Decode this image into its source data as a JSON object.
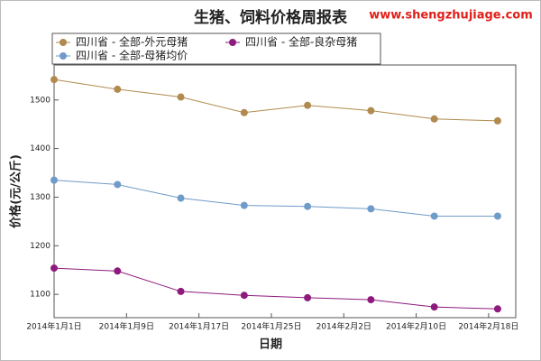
{
  "chart_data": {
    "type": "line",
    "title": "生猪、饲料价格周报表",
    "watermark": "www.shengzhujiage.com",
    "x_label": "日期",
    "y_label": "价格(元/公斤)",
    "x": [
      "2014-01-01",
      "2014-01-08",
      "2014-01-15",
      "2014-01-22",
      "2014-01-29",
      "2014-02-05",
      "2014-02-12",
      "2014-02-19"
    ],
    "series": [
      {
        "name": "四川省 - 全部-外元母猪",
        "color": "#b08a4e",
        "values": [
          1542,
          1522,
          1506,
          1474,
          1489,
          1478,
          1461,
          1457
        ]
      },
      {
        "name": "四川省 - 全部-良杂母猪",
        "color": "#8e1a7e",
        "values": [
          1154,
          1148,
          1106,
          1098,
          1093,
          1089,
          1074,
          1070
        ]
      },
      {
        "name": "四川省 - 全部-母猪均价",
        "color": "#6f9bc8",
        "values": [
          1335,
          1326,
          1298,
          1283,
          1281,
          1276,
          1261,
          1261
        ]
      }
    ],
    "xlim": [
      "2014-01-01",
      "2014-02-21"
    ],
    "xticks": [
      {
        "value": "2014-01-01",
        "label": "2014年1月1日"
      },
      {
        "value": "2014-01-09",
        "label": "2014年1月9日"
      },
      {
        "value": "2014-01-17",
        "label": "2014年1月17日"
      },
      {
        "value": "2014-01-25",
        "label": "2014年1月25日"
      },
      {
        "value": "2014-02-02",
        "label": "2014年2月2日"
      },
      {
        "value": "2014-02-10",
        "label": "2014年2月10日"
      },
      {
        "value": "2014-02-18",
        "label": "2014年2月18日"
      }
    ],
    "ylim": [
      1052,
      1572
    ],
    "yticks": [
      1100,
      1200,
      1300,
      1400,
      1500
    ]
  }
}
